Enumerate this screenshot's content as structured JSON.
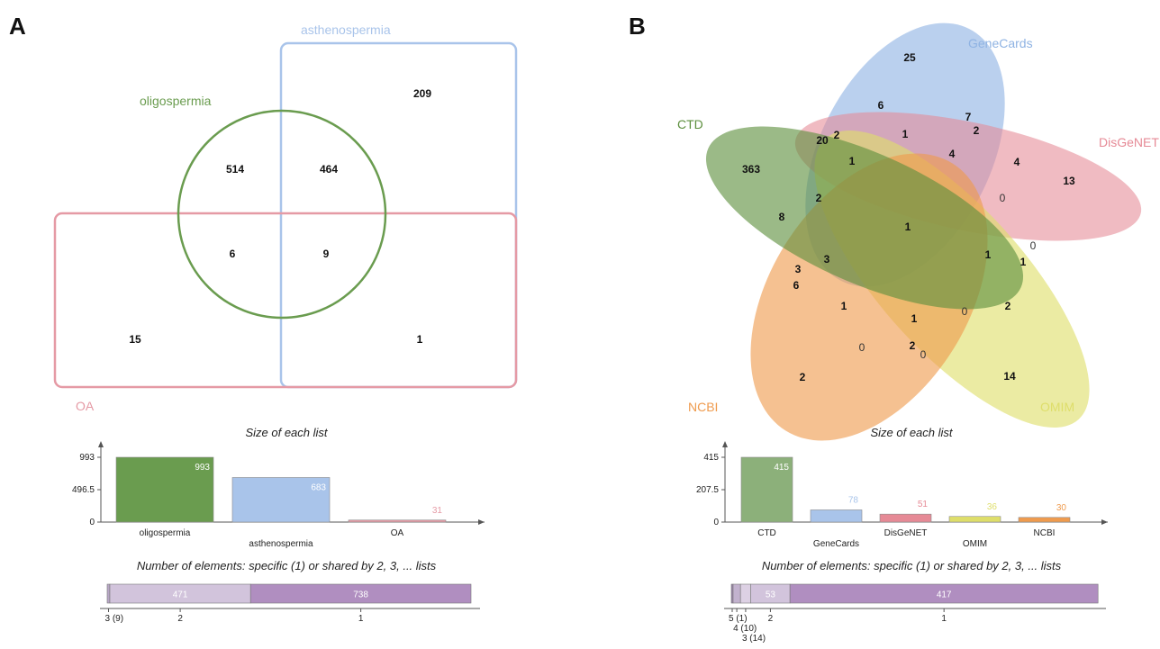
{
  "panel_a": {
    "label": "A",
    "sets": [
      {
        "name": "oligospermia",
        "color": "#6a9c4f"
      },
      {
        "name": "asthenospermia",
        "color": "#a9c4ea"
      },
      {
        "name": "OA",
        "color": "#e59aa5"
      }
    ],
    "region_counts": [
      "514",
      "464",
      "209",
      "6",
      "9",
      "15",
      "1"
    ],
    "list_sizes_title": "Size of each list",
    "shared_title": "Number of elements: specific (1) or shared by 2, 3, ... lists"
  },
  "panel_b": {
    "label": "B",
    "sets": [
      {
        "name": "GeneCards",
        "color": "#8fb3e3"
      },
      {
        "name": "DisGeNET",
        "color": "#e68a96"
      },
      {
        "name": "OMIM",
        "color": "#dede6a"
      },
      {
        "name": "NCBI",
        "color": "#ef9b4e"
      },
      {
        "name": "CTD",
        "color": "#5d8f3e"
      }
    ],
    "region_counts": [
      "25",
      "6",
      "7",
      "2",
      "2",
      "1",
      "20",
      "363",
      "1",
      "4",
      "4",
      "13",
      "2",
      "8",
      "0",
      "1",
      "3",
      "3",
      "1",
      "0",
      "6",
      "1",
      "1",
      "0",
      "1",
      "2",
      "0",
      "2",
      "0",
      "2",
      "14"
    ],
    "list_sizes_title": "Size of each list",
    "shared_title": "Number of elements: specific (1) or shared by 2, 3, ... lists"
  },
  "chart_data": [
    {
      "type": "bar",
      "title": "Size of each list",
      "categories": [
        "oligospermia",
        "asthenospermia",
        "OA"
      ],
      "values": [
        993,
        683,
        31
      ],
      "value_labels": [
        "993",
        "683",
        "31"
      ],
      "colors": [
        "#6a9c4f",
        "#a9c4ea",
        "#e59aa5"
      ],
      "yticks": [
        "0",
        "496.5",
        "993"
      ],
      "ylim": [
        0,
        993
      ]
    },
    {
      "type": "bar",
      "title": "Number of elements: specific (1) or shared by 2, 3, ... lists",
      "orientation": "horizontal-stacked",
      "segments": [
        {
          "key": "3",
          "value": 9,
          "label": "",
          "axis_label": "3 (9)",
          "color": "#b8a6c6"
        },
        {
          "key": "2",
          "value": 471,
          "label": "471",
          "axis_label": "2",
          "color": "#d2c4dc"
        },
        {
          "key": "1",
          "value": 738,
          "label": "738",
          "axis_label": "1",
          "color": "#b08ec0"
        }
      ]
    },
    {
      "type": "bar",
      "title": "Size of each list",
      "categories": [
        "CTD",
        "GeneCards",
        "DisGeNET",
        "OMIM",
        "NCBI"
      ],
      "values": [
        415,
        78,
        51,
        36,
        30
      ],
      "value_labels": [
        "415",
        "78",
        "51",
        "36",
        "30"
      ],
      "colors": [
        "#8cb07a",
        "#a9c4ea",
        "#e68a96",
        "#dede6a",
        "#ef9b4e"
      ],
      "yticks": [
        "0",
        "207.5",
        "415"
      ],
      "ylim": [
        0,
        415
      ]
    },
    {
      "type": "bar",
      "title": "Number of elements: specific (1) or shared by 2, 3, ... lists",
      "orientation": "horizontal-stacked",
      "segments": [
        {
          "key": "5",
          "value": 1,
          "label": "",
          "axis_label": "5 (1)",
          "color": "#9c86ac"
        },
        {
          "key": "4",
          "value": 10,
          "label": "",
          "axis_label": "4 (10)",
          "color": "#c2b2ce"
        },
        {
          "key": "3",
          "value": 14,
          "label": "",
          "axis_label": "3 (14)",
          "color": "#ddd1e4"
        },
        {
          "key": "2",
          "value": 53,
          "label": "53",
          "axis_label": "2",
          "color": "#d2c4dc"
        },
        {
          "key": "1",
          "value": 417,
          "label": "417",
          "axis_label": "1",
          "color": "#b08ec0"
        }
      ]
    }
  ]
}
